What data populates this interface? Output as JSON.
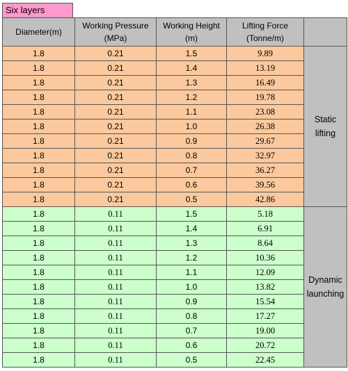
{
  "title": "Six layers",
  "headers": {
    "diameter": "Diameter(m)",
    "pressure_line1": "Working Pressure",
    "pressure_line2": "(MPa)",
    "height_line1": "Working Height",
    "height_line2": "(m)",
    "force_line1": "Lifting Force",
    "force_line2": "(Tonne/m)"
  },
  "groups": [
    {
      "label_line1": "Static",
      "label_line2": "lifting",
      "rows": [
        {
          "diameter": "1.8",
          "pressure": "0.21",
          "height": "1.5",
          "force": "9.89"
        },
        {
          "diameter": "1.8",
          "pressure": "0.21",
          "height": "1.4",
          "force": "13.19"
        },
        {
          "diameter": "1.8",
          "pressure": "0.21",
          "height": "1.3",
          "force": "16.49"
        },
        {
          "diameter": "1.8",
          "pressure": "0.21",
          "height": "1.2",
          "force": "19.78"
        },
        {
          "diameter": "1.8",
          "pressure": "0.21",
          "height": "1.1",
          "force": "23.08"
        },
        {
          "diameter": "1.8",
          "pressure": "0.21",
          "height": "1.0",
          "force": "26.38"
        },
        {
          "diameter": "1.8",
          "pressure": "0.21",
          "height": "0.9",
          "force": "29.67"
        },
        {
          "diameter": "1.8",
          "pressure": "0.21",
          "height": "0.8",
          "force": "32.97"
        },
        {
          "diameter": "1.8",
          "pressure": "0.21",
          "height": "0.7",
          "force": "36.27"
        },
        {
          "diameter": "1.8",
          "pressure": "0.21",
          "height": "0.6",
          "force": "39.56"
        },
        {
          "diameter": "1.8",
          "pressure": "0.21",
          "height": "0.5",
          "force": "42.86"
        }
      ]
    },
    {
      "label_line1": "Dynamic",
      "label_line2": "launching",
      "rows": [
        {
          "diameter": "1.8",
          "pressure": "0.11",
          "height": "1.5",
          "force": "5.18"
        },
        {
          "diameter": "1.8",
          "pressure": "0.11",
          "height": "1.4",
          "force": "6.91"
        },
        {
          "diameter": "1.8",
          "pressure": "0.11",
          "height": "1.3",
          "force": "8.64"
        },
        {
          "diameter": "1.8",
          "pressure": "0.11",
          "height": "1.2",
          "force": "10.36"
        },
        {
          "diameter": "1.8",
          "pressure": "0.11",
          "height": "1.1",
          "force": "12.09"
        },
        {
          "diameter": "1.8",
          "pressure": "0.11",
          "height": "1.0",
          "force": "13.82"
        },
        {
          "diameter": "1.8",
          "pressure": "0.11",
          "height": "0.9",
          "force": "15.54"
        },
        {
          "diameter": "1.8",
          "pressure": "0.11",
          "height": "0.8",
          "force": "17.27"
        },
        {
          "diameter": "1.8",
          "pressure": "0.11",
          "height": "0.7",
          "force": "19.00"
        },
        {
          "diameter": "1.8",
          "pressure": "0.11",
          "height": "0.6",
          "force": "20.72"
        },
        {
          "diameter": "1.8",
          "pressure": "0.11",
          "height": "0.5",
          "force": "22.45"
        }
      ]
    }
  ]
}
